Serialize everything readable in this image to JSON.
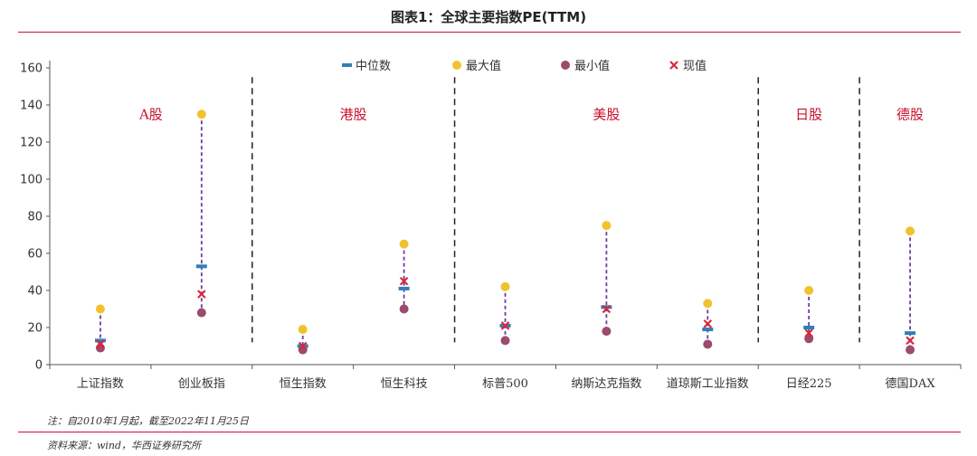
{
  "title": "图表1：全球主要指数PE(TTM)",
  "note": "注：自2010年1月起，截至2022年11月25日",
  "source": "资料来源：wind，华西证券研究所",
  "colors": {
    "median": "#2f7fb8",
    "max": "#f2c12e",
    "min": "#9c4a6e",
    "current": "#d9283a",
    "range_line": "#6a3fa0",
    "accent": "#c8102e"
  },
  "chart_data": {
    "type": "scatter",
    "categories": [
      "上证指数",
      "创业板指",
      "恒生指数",
      "恒生科技",
      "标普500",
      "纳斯达克指数",
      "道琼斯工业指数",
      "日经225",
      "德国DAX"
    ],
    "ylim": [
      0,
      160
    ],
    "yticks": [
      0,
      20,
      40,
      60,
      80,
      100,
      120,
      140,
      160
    ],
    "grid": false,
    "legend_position": "top",
    "series": [
      {
        "name": "中位数",
        "marker": "dash",
        "values": [
          13,
          53,
          10,
          41,
          21,
          31,
          19,
          20,
          17
        ]
      },
      {
        "name": "最大值",
        "marker": "circle",
        "values": [
          30,
          135,
          19,
          65,
          42,
          75,
          33,
          40,
          72
        ]
      },
      {
        "name": "最小值",
        "marker": "circle",
        "values": [
          9,
          28,
          8,
          30,
          13,
          18,
          11,
          14,
          8
        ]
      },
      {
        "name": "现值",
        "marker": "x",
        "values": [
          11,
          38,
          10,
          45,
          21,
          30,
          22,
          17,
          13
        ]
      }
    ],
    "groups": [
      {
        "label": "A股",
        "from": 0,
        "to": 1
      },
      {
        "label": "港股",
        "from": 2,
        "to": 3
      },
      {
        "label": "美股",
        "from": 4,
        "to": 6
      },
      {
        "label": "日股",
        "from": 7,
        "to": 7
      },
      {
        "label": "德股",
        "from": 8,
        "to": 8
      }
    ]
  }
}
